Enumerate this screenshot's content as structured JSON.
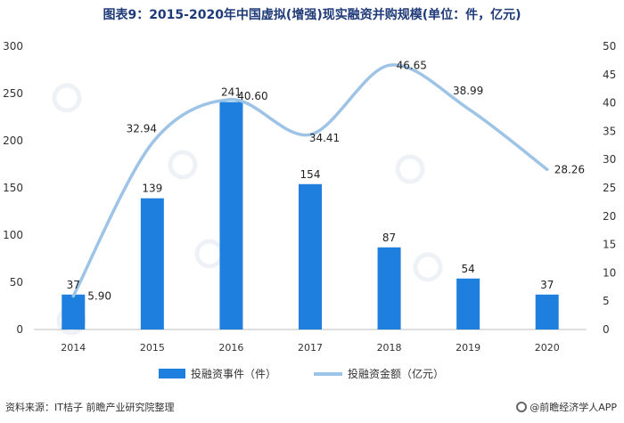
{
  "title": "图表9：2015-2020年中国虚拟(增强)现实融资并购规模(单位：件，亿元)",
  "source": "资料来源：IT桔子 前瞻产业研究院整理",
  "brand": "@前瞻经济学人APP",
  "colors": {
    "bar": "#1f7fde",
    "line": "#9dc3e6",
    "title": "#1e3a78"
  },
  "chart_data": {
    "type": "bar",
    "title": "图表9：2015-2020年中国虚拟(增强)现实融资并购规模(单位：件，亿元)",
    "xlabel": "",
    "ylabel": "",
    "categories": [
      "2014",
      "2015",
      "2016",
      "2017",
      "2018",
      "2019",
      "2020"
    ],
    "series": [
      {
        "name": "投融资事件（件）",
        "type": "bar",
        "axis": "left",
        "values": [
          37,
          139,
          241,
          154,
          87,
          54,
          37
        ]
      },
      {
        "name": "投融资金额（亿元）",
        "type": "line",
        "axis": "right",
        "values": [
          5.9,
          32.94,
          40.6,
          34.41,
          46.65,
          38.99,
          28.26
        ]
      }
    ],
    "bar_labels": [
      "37",
      "139",
      "241",
      "154",
      "87",
      "54",
      "37"
    ],
    "line_labels": [
      "5.90",
      "32.94",
      "40.60",
      "34.41",
      "46.65",
      "38.99",
      "28.26"
    ],
    "ylim": [
      0,
      300
    ],
    "y_ticks": [
      "0",
      "50",
      "100",
      "150",
      "200",
      "250",
      "300"
    ],
    "y2lim": [
      0,
      50
    ],
    "y2_ticks": [
      "0",
      "5",
      "10",
      "15",
      "20",
      "25",
      "30",
      "35",
      "40",
      "45",
      "50"
    ],
    "grid": false,
    "legend_position": "bottom"
  }
}
